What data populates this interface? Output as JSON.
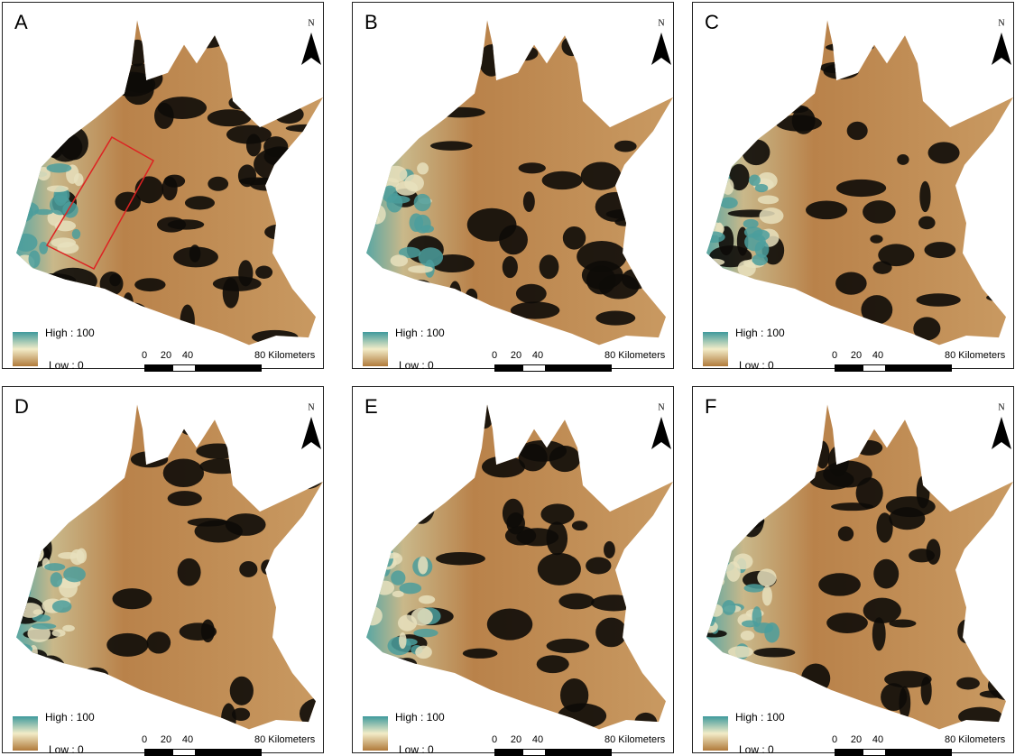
{
  "panels": [
    {
      "label": "A",
      "north": "N",
      "legend": {
        "high": "High : 100",
        "low": "Low : 0"
      },
      "scale_bar": {
        "ticks": [
          "0",
          "20",
          "40"
        ],
        "unit": "80 Kilometers"
      }
    },
    {
      "label": "B",
      "north": "N",
      "legend": {
        "high": "High : 100",
        "low": "Low : 0"
      },
      "scale_bar": {
        "ticks": [
          "0",
          "20",
          "40"
        ],
        "unit": "80 Kilometers"
      }
    },
    {
      "label": "C",
      "north": "N",
      "legend": {
        "high": "High : 100",
        "low": "Low : 0"
      },
      "scale_bar": {
        "ticks": [
          "0",
          "20",
          "40"
        ],
        "unit": "80 Kilometers"
      }
    },
    {
      "label": "D",
      "north": "N",
      "legend": {
        "high": "High : 100",
        "low": "Low : 0"
      },
      "scale_bar": {
        "ticks": [
          "0",
          "20",
          "40"
        ],
        "unit": "80 Kilometers"
      }
    },
    {
      "label": "E",
      "north": "N",
      "legend": {
        "high": "High : 100",
        "low": "Low : 0"
      },
      "scale_bar": {
        "ticks": [
          "0",
          "20",
          "40"
        ],
        "unit": "80 Kilometers"
      }
    },
    {
      "label": "F",
      "north": "N",
      "legend": {
        "high": "High : 100",
        "low": "Low : 0"
      },
      "scale_bar": {
        "ticks": [
          "0",
          "20",
          "40"
        ],
        "unit": "80 Kilometers"
      }
    }
  ]
}
